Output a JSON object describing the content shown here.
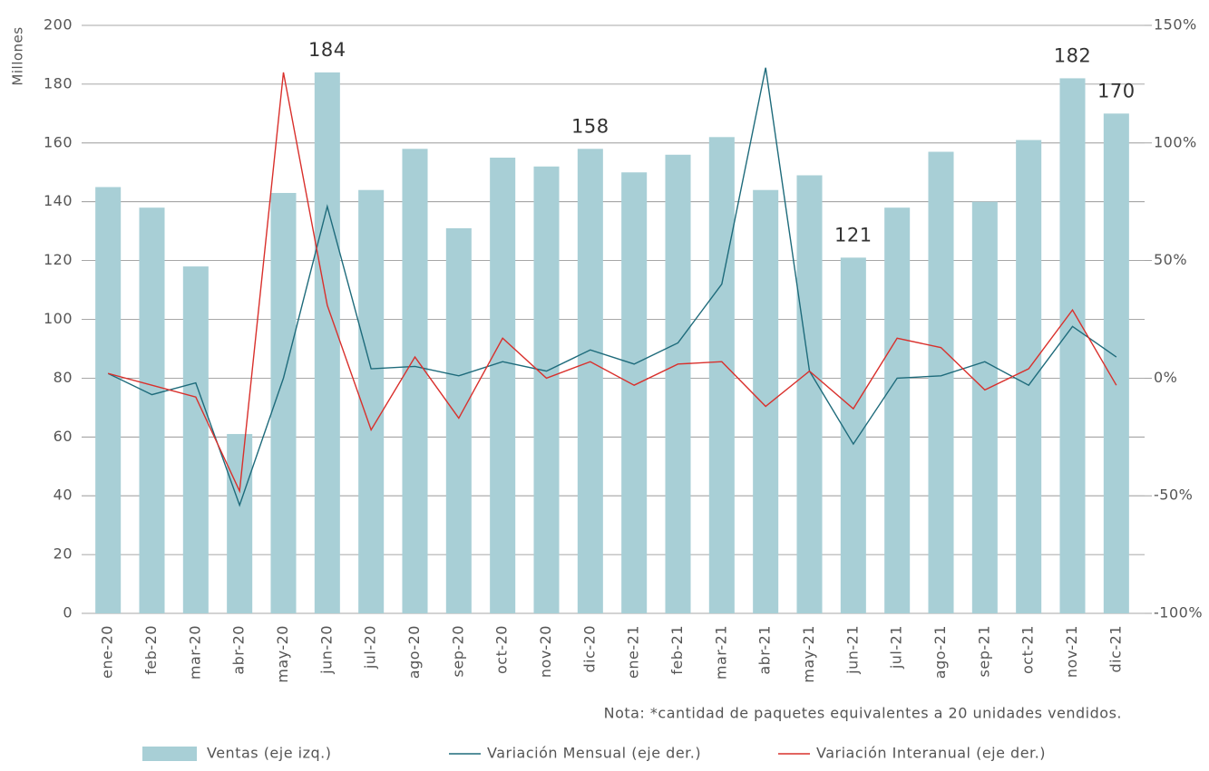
{
  "chart_data": {
    "type": "bar_line",
    "y_label": "Millones",
    "categories": [
      "ene-20",
      "feb-20",
      "mar-20",
      "abr-20",
      "may-20",
      "jun-20",
      "jul-20",
      "ago-20",
      "sep-20",
      "oct-20",
      "nov-20",
      "dic-20",
      "ene-21",
      "feb-21",
      "mar-21",
      "abr-21",
      "may-21",
      "jun-21",
      "jul-21",
      "ago-21",
      "sep-21",
      "oct-21",
      "nov-21",
      "dic-21"
    ],
    "ylim": [
      0,
      200
    ],
    "yticks": [
      0,
      20,
      40,
      60,
      80,
      100,
      120,
      140,
      160,
      180,
      200
    ],
    "y2lim": [
      -100,
      150
    ],
    "y2ticks": [
      {
        "value": -100,
        "label": "-100%"
      },
      {
        "value": -50,
        "label": "-50%"
      },
      {
        "value": 0,
        "label": "0%"
      },
      {
        "value": 50,
        "label": "50%"
      },
      {
        "value": 100,
        "label": "100%"
      },
      {
        "value": 150,
        "label": "150%"
      }
    ],
    "grid": true,
    "series": [
      {
        "name": "Ventas (eje izq.)",
        "kind": "bar",
        "color": "#a8cfd6",
        "values": [
          145,
          138,
          118,
          61,
          143,
          184,
          144,
          158,
          131,
          155,
          152,
          158,
          150,
          156,
          162,
          144,
          149,
          121,
          138,
          157,
          140,
          161,
          182,
          170
        ],
        "value_labels": [
          null,
          null,
          null,
          null,
          null,
          "184",
          null,
          null,
          null,
          null,
          null,
          "158",
          null,
          null,
          null,
          null,
          null,
          "121",
          null,
          null,
          null,
          null,
          "182",
          "170"
        ]
      },
      {
        "name": "Variación Mensual (eje der.)",
        "kind": "line",
        "axis": "y2",
        "color": "#1e6b7b",
        "values": [
          2,
          -7,
          -2,
          -54,
          0,
          73,
          4,
          5,
          1,
          7,
          3,
          12,
          6,
          15,
          40,
          132,
          3,
          -28,
          0,
          1,
          7,
          -3,
          22,
          9
        ]
      },
      {
        "name": "Variación Interanual (eje der.)",
        "kind": "line",
        "axis": "y2",
        "color": "#d9302c",
        "values": [
          2,
          -3,
          -8,
          -48,
          130,
          31,
          -22,
          9,
          -17,
          17,
          0,
          7,
          -3,
          6,
          7,
          -12,
          3,
          -13,
          17,
          13,
          -5,
          4,
          29,
          -3
        ]
      }
    ],
    "note": "Nota: *cantidad de paquetes equivalentes a 20 unidades vendidos."
  }
}
